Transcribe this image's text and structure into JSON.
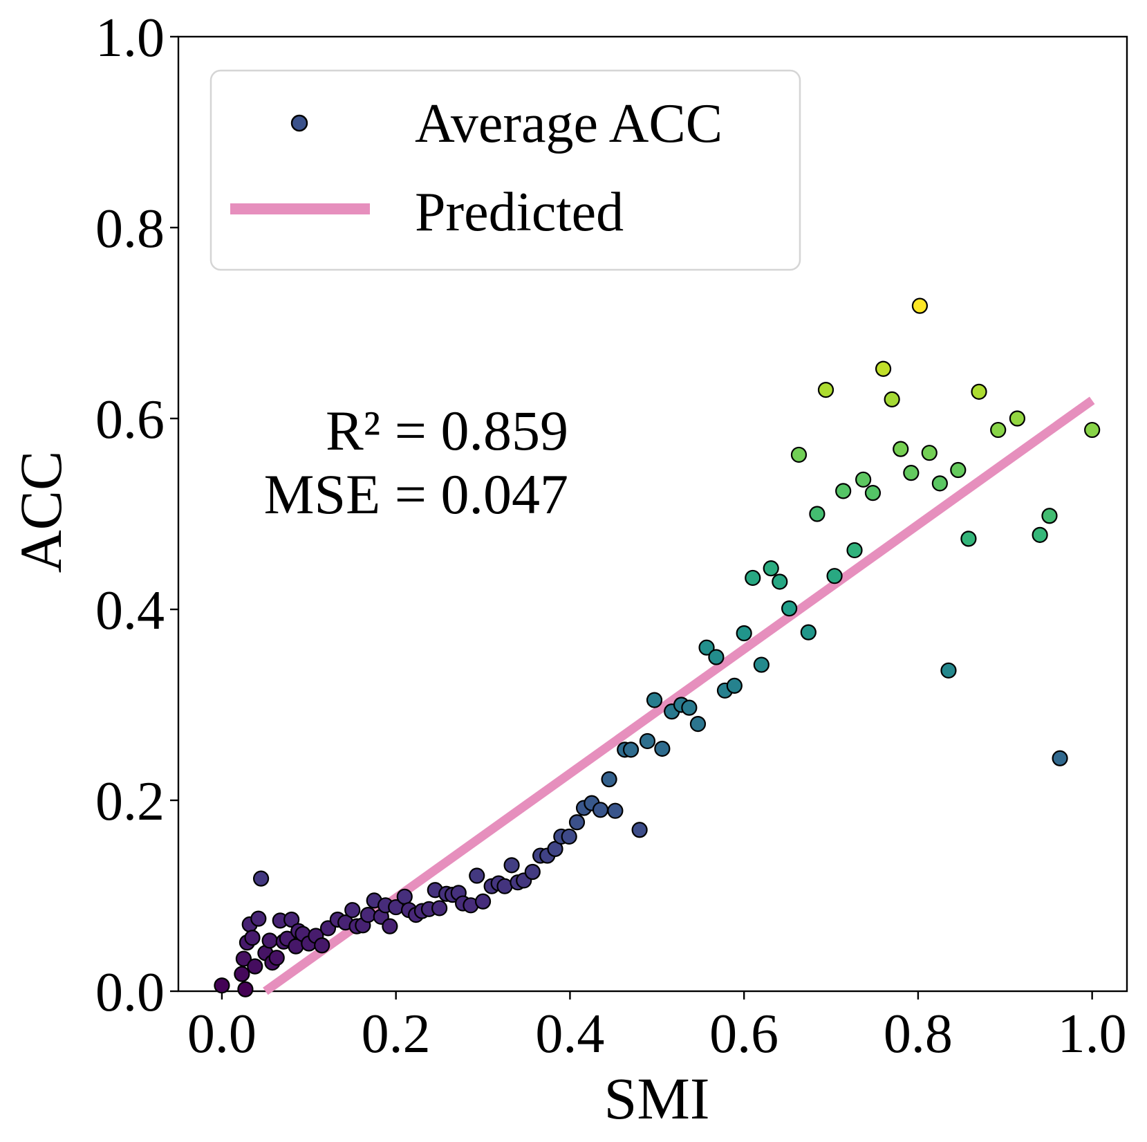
{
  "chart_data": {
    "type": "scatter",
    "xlabel": "SMI",
    "ylabel": "ACC",
    "xlim": [
      -0.05,
      1.04
    ],
    "ylim": [
      0.0,
      1.0
    ],
    "xticks": [
      "0.0",
      "0.2",
      "0.4",
      "0.6",
      "0.8",
      "1.0"
    ],
    "xtick_values": [
      0.0,
      0.2,
      0.4,
      0.6,
      0.8,
      1.0
    ],
    "yticks": [
      "0.0",
      "0.2",
      "0.4",
      "0.6",
      "0.8",
      "1.0"
    ],
    "ytick_values": [
      0.0,
      0.2,
      0.4,
      0.6,
      0.8,
      1.0
    ],
    "grid": false,
    "legend_position": "upper-left",
    "colormap": "viridis",
    "point_edge_color": "#000000",
    "line_color": "#e68fbd",
    "annotations": [
      "R² = 0.859",
      "MSE = 0.047"
    ],
    "series": [
      {
        "name": "Average ACC",
        "type": "scatter",
        "legend_marker_color": "#3b528b",
        "points": [
          [
            0.0,
            0.006
          ],
          [
            0.023,
            0.018
          ],
          [
            0.025,
            0.034
          ],
          [
            0.027,
            0.002
          ],
          [
            0.029,
            0.051
          ],
          [
            0.032,
            0.07
          ],
          [
            0.035,
            0.056
          ],
          [
            0.038,
            0.026
          ],
          [
            0.042,
            0.076
          ],
          [
            0.045,
            0.118
          ],
          [
            0.05,
            0.04
          ],
          [
            0.055,
            0.053
          ],
          [
            0.058,
            0.03
          ],
          [
            0.063,
            0.035
          ],
          [
            0.067,
            0.074
          ],
          [
            0.071,
            0.052
          ],
          [
            0.075,
            0.055
          ],
          [
            0.08,
            0.075
          ],
          [
            0.085,
            0.047
          ],
          [
            0.088,
            0.063
          ],
          [
            0.093,
            0.06
          ],
          [
            0.1,
            0.05
          ],
          [
            0.108,
            0.058
          ],
          [
            0.115,
            0.048
          ],
          [
            0.122,
            0.066
          ],
          [
            0.133,
            0.075
          ],
          [
            0.142,
            0.072
          ],
          [
            0.15,
            0.085
          ],
          [
            0.155,
            0.068
          ],
          [
            0.162,
            0.069
          ],
          [
            0.168,
            0.08
          ],
          [
            0.175,
            0.095
          ],
          [
            0.183,
            0.078
          ],
          [
            0.188,
            0.09
          ],
          [
            0.193,
            0.068
          ],
          [
            0.2,
            0.088
          ],
          [
            0.21,
            0.099
          ],
          [
            0.215,
            0.085
          ],
          [
            0.223,
            0.08
          ],
          [
            0.23,
            0.084
          ],
          [
            0.238,
            0.086
          ],
          [
            0.245,
            0.106
          ],
          [
            0.25,
            0.087
          ],
          [
            0.258,
            0.102
          ],
          [
            0.265,
            0.101
          ],
          [
            0.272,
            0.103
          ],
          [
            0.277,
            0.092
          ],
          [
            0.286,
            0.09
          ],
          [
            0.293,
            0.121
          ],
          [
            0.3,
            0.094
          ],
          [
            0.31,
            0.11
          ],
          [
            0.318,
            0.113
          ],
          [
            0.325,
            0.11
          ],
          [
            0.333,
            0.132
          ],
          [
            0.34,
            0.114
          ],
          [
            0.347,
            0.116
          ],
          [
            0.357,
            0.125
          ],
          [
            0.366,
            0.142
          ],
          [
            0.374,
            0.142
          ],
          [
            0.383,
            0.149
          ],
          [
            0.39,
            0.162
          ],
          [
            0.399,
            0.162
          ],
          [
            0.408,
            0.177
          ],
          [
            0.416,
            0.192
          ],
          [
            0.425,
            0.197
          ],
          [
            0.435,
            0.19
          ],
          [
            0.445,
            0.222
          ],
          [
            0.452,
            0.189
          ],
          [
            0.48,
            0.169
          ],
          [
            0.463,
            0.253
          ],
          [
            0.47,
            0.253
          ],
          [
            0.489,
            0.262
          ],
          [
            0.497,
            0.305
          ],
          [
            0.506,
            0.254
          ],
          [
            0.517,
            0.293
          ],
          [
            0.528,
            0.3
          ],
          [
            0.537,
            0.297
          ],
          [
            0.547,
            0.28
          ],
          [
            0.557,
            0.36
          ],
          [
            0.568,
            0.35
          ],
          [
            0.578,
            0.315
          ],
          [
            0.589,
            0.32
          ],
          [
            0.6,
            0.375
          ],
          [
            0.61,
            0.433
          ],
          [
            0.62,
            0.342
          ],
          [
            0.631,
            0.443
          ],
          [
            0.641,
            0.429
          ],
          [
            0.652,
            0.401
          ],
          [
            0.663,
            0.562
          ],
          [
            0.674,
            0.376
          ],
          [
            0.684,
            0.5
          ],
          [
            0.694,
            0.63
          ],
          [
            0.704,
            0.435
          ],
          [
            0.714,
            0.524
          ],
          [
            0.727,
            0.462
          ],
          [
            0.737,
            0.536
          ],
          [
            0.748,
            0.522
          ],
          [
            0.76,
            0.652
          ],
          [
            0.77,
            0.62
          ],
          [
            0.78,
            0.568
          ],
          [
            0.792,
            0.543
          ],
          [
            0.802,
            0.718
          ],
          [
            0.813,
            0.564
          ],
          [
            0.825,
            0.532
          ],
          [
            0.835,
            0.336
          ],
          [
            0.846,
            0.546
          ],
          [
            0.858,
            0.474
          ],
          [
            0.87,
            0.628
          ],
          [
            0.892,
            0.588
          ],
          [
            0.914,
            0.6
          ],
          [
            0.94,
            0.478
          ],
          [
            0.951,
            0.498
          ],
          [
            0.963,
            0.244
          ],
          [
            1.0,
            0.588
          ]
        ]
      },
      {
        "name": "Predicted",
        "type": "line",
        "x": [
          0.05,
          1.0
        ],
        "y": [
          0.0,
          0.619
        ]
      }
    ]
  }
}
